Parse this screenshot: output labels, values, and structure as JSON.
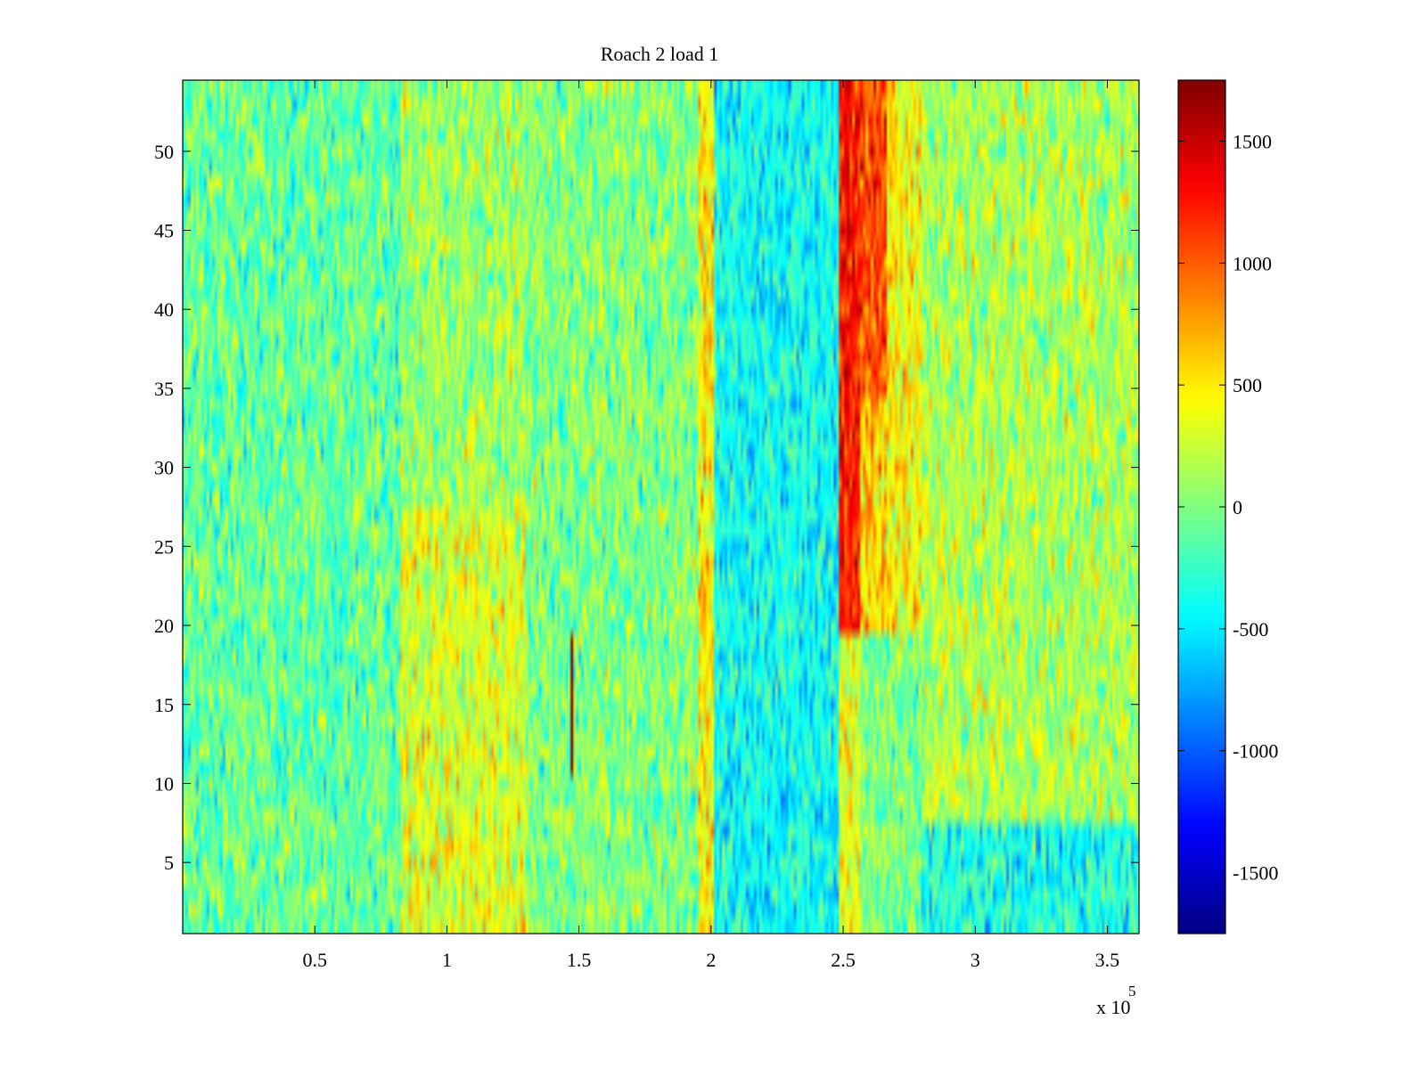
{
  "chart_data": {
    "type": "heatmap",
    "title": "Roach 2 load 1",
    "xlabel": "",
    "ylabel": "",
    "x_exponent_label": "x 10",
    "x_exponent_power": "5",
    "xlim": [
      0.0,
      3.62
    ],
    "ylim": [
      0.5,
      54.5
    ],
    "x_ticks": [
      0.5,
      1,
      1.5,
      2,
      2.5,
      3,
      3.5
    ],
    "x_tick_labels": [
      "0.5",
      "1",
      "1.5",
      "2",
      "2.5",
      "3",
      "3.5"
    ],
    "y_ticks": [
      5,
      10,
      15,
      20,
      25,
      30,
      35,
      40,
      45,
      50
    ],
    "y_tick_labels": [
      "5",
      "10",
      "15",
      "20",
      "25",
      "30",
      "35",
      "40",
      "45",
      "50"
    ],
    "rows": 54,
    "columns": 360,
    "colormap": "jet",
    "colorbar": {
      "clim": [
        -1750,
        1750
      ],
      "ticks": [
        1500,
        1000,
        500,
        0,
        -500,
        -1000,
        -1500
      ],
      "tick_labels": [
        "1500",
        "1000",
        "500",
        "0",
        "-500",
        "-1000",
        "-1500"
      ]
    },
    "regions": [
      {
        "x_start": 0.0,
        "x_end": 0.82,
        "y_start": 0.5,
        "y_end": 54.5,
        "mean": -100,
        "spread": 330
      },
      {
        "x_start": 0.82,
        "x_end": 1.3,
        "y_start": 0.5,
        "y_end": 28,
        "mean": 300,
        "spread": 330
      },
      {
        "x_start": 0.82,
        "x_end": 1.3,
        "y_start": 28,
        "y_end": 54.5,
        "mean": 100,
        "spread": 330
      },
      {
        "x_start": 1.3,
        "x_end": 1.95,
        "y_start": 0.5,
        "y_end": 54.5,
        "mean": 0,
        "spread": 330
      },
      {
        "x_start": 1.95,
        "x_end": 2.01,
        "y_start": 0.5,
        "y_end": 54.5,
        "mean": 500,
        "spread": 330
      },
      {
        "x_start": 2.01,
        "x_end": 2.48,
        "y_start": 0.5,
        "y_end": 54.5,
        "mean": -400,
        "spread": 300
      },
      {
        "x_start": 2.48,
        "x_end": 2.56,
        "y_start": 20,
        "y_end": 54.5,
        "mean": 1250,
        "spread": 300
      },
      {
        "x_start": 2.48,
        "x_end": 2.56,
        "y_start": 0.5,
        "y_end": 20,
        "mean": 350,
        "spread": 300
      },
      {
        "x_start": 2.56,
        "x_end": 2.66,
        "y_start": 35,
        "y_end": 54.5,
        "mean": 1050,
        "spread": 320
      },
      {
        "x_start": 2.56,
        "x_end": 2.66,
        "y_start": 20,
        "y_end": 35,
        "mean": 600,
        "spread": 320
      },
      {
        "x_start": 2.66,
        "x_end": 2.8,
        "y_start": 20,
        "y_end": 54.5,
        "mean": 450,
        "spread": 330
      },
      {
        "x_start": 2.56,
        "x_end": 2.8,
        "y_start": 0.5,
        "y_end": 20,
        "mean": 0,
        "spread": 330
      },
      {
        "x_start": 2.8,
        "x_end": 3.62,
        "y_start": 8,
        "y_end": 54.5,
        "mean": 150,
        "spread": 330
      },
      {
        "x_start": 2.8,
        "x_end": 3.62,
        "y_start": 0.5,
        "y_end": 8,
        "mean": -350,
        "spread": 330
      }
    ],
    "features": [
      {
        "kind": "spike",
        "x": 1.47,
        "y_start": 10.5,
        "y_end": 19.5,
        "value": 1700
      }
    ]
  }
}
